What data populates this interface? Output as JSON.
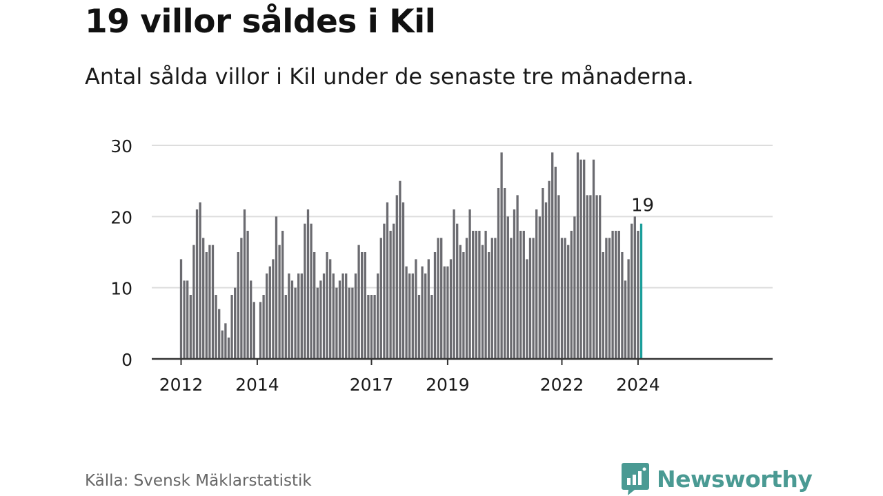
{
  "title": "19 villor såldes i Kil",
  "subtitle": "Antal sålda villor i Kil under de senaste tre månaderna.",
  "source": "Källa: Svensk Mäklarstatistik",
  "brand": {
    "name": "Newsworthy",
    "icon": "newsworthy-logo-icon"
  },
  "colors": {
    "bar": "#6b6b70",
    "highlight": "#1a9e9a",
    "grid": "#dddddd",
    "axis": "#333333",
    "text": "#1a1a1a",
    "brand": "#4a9a93"
  },
  "chart_data": {
    "type": "bar",
    "title": "19 villor såldes i Kil",
    "xlabel": "",
    "ylabel": "",
    "ylim": [
      0,
      30
    ],
    "yticks": [
      "0",
      "10",
      "20",
      "30"
    ],
    "xticks": [
      {
        "label": "2012",
        "index": 0
      },
      {
        "label": "2014",
        "index": 24
      },
      {
        "label": "2017",
        "index": 60
      },
      {
        "label": "2019",
        "index": 84
      },
      {
        "label": "2022",
        "index": 120
      },
      {
        "label": "2024",
        "index": 144
      }
    ],
    "values": [
      14,
      11,
      11,
      9,
      16,
      21,
      22,
      17,
      15,
      16,
      16,
      9,
      7,
      4,
      5,
      3,
      9,
      10,
      15,
      17,
      21,
      18,
      11,
      8,
      0,
      8,
      9,
      12,
      13,
      14,
      20,
      16,
      18,
      9,
      12,
      11,
      10,
      12,
      12,
      19,
      21,
      19,
      15,
      10,
      11,
      12,
      15,
      14,
      12,
      10,
      11,
      12,
      12,
      10,
      10,
      12,
      16,
      15,
      15,
      9,
      9,
      9,
      12,
      17,
      19,
      22,
      18,
      19,
      23,
      25,
      22,
      13,
      12,
      12,
      14,
      9,
      13,
      12,
      14,
      9,
      15,
      17,
      17,
      13,
      13,
      14,
      21,
      19,
      16,
      15,
      17,
      21,
      18,
      18,
      18,
      16,
      18,
      15,
      17,
      17,
      24,
      29,
      24,
      20,
      17,
      21,
      23,
      18,
      18,
      14,
      17,
      17,
      21,
      20,
      24,
      22,
      25,
      29,
      27,
      23,
      17,
      17,
      16,
      18,
      20,
      29,
      28,
      28,
      23,
      23,
      28,
      23,
      23,
      15,
      17,
      17,
      18,
      18,
      18,
      15,
      11,
      14,
      19,
      20,
      18,
      19
    ],
    "highlight_index": 145,
    "highlight_label": "19"
  }
}
